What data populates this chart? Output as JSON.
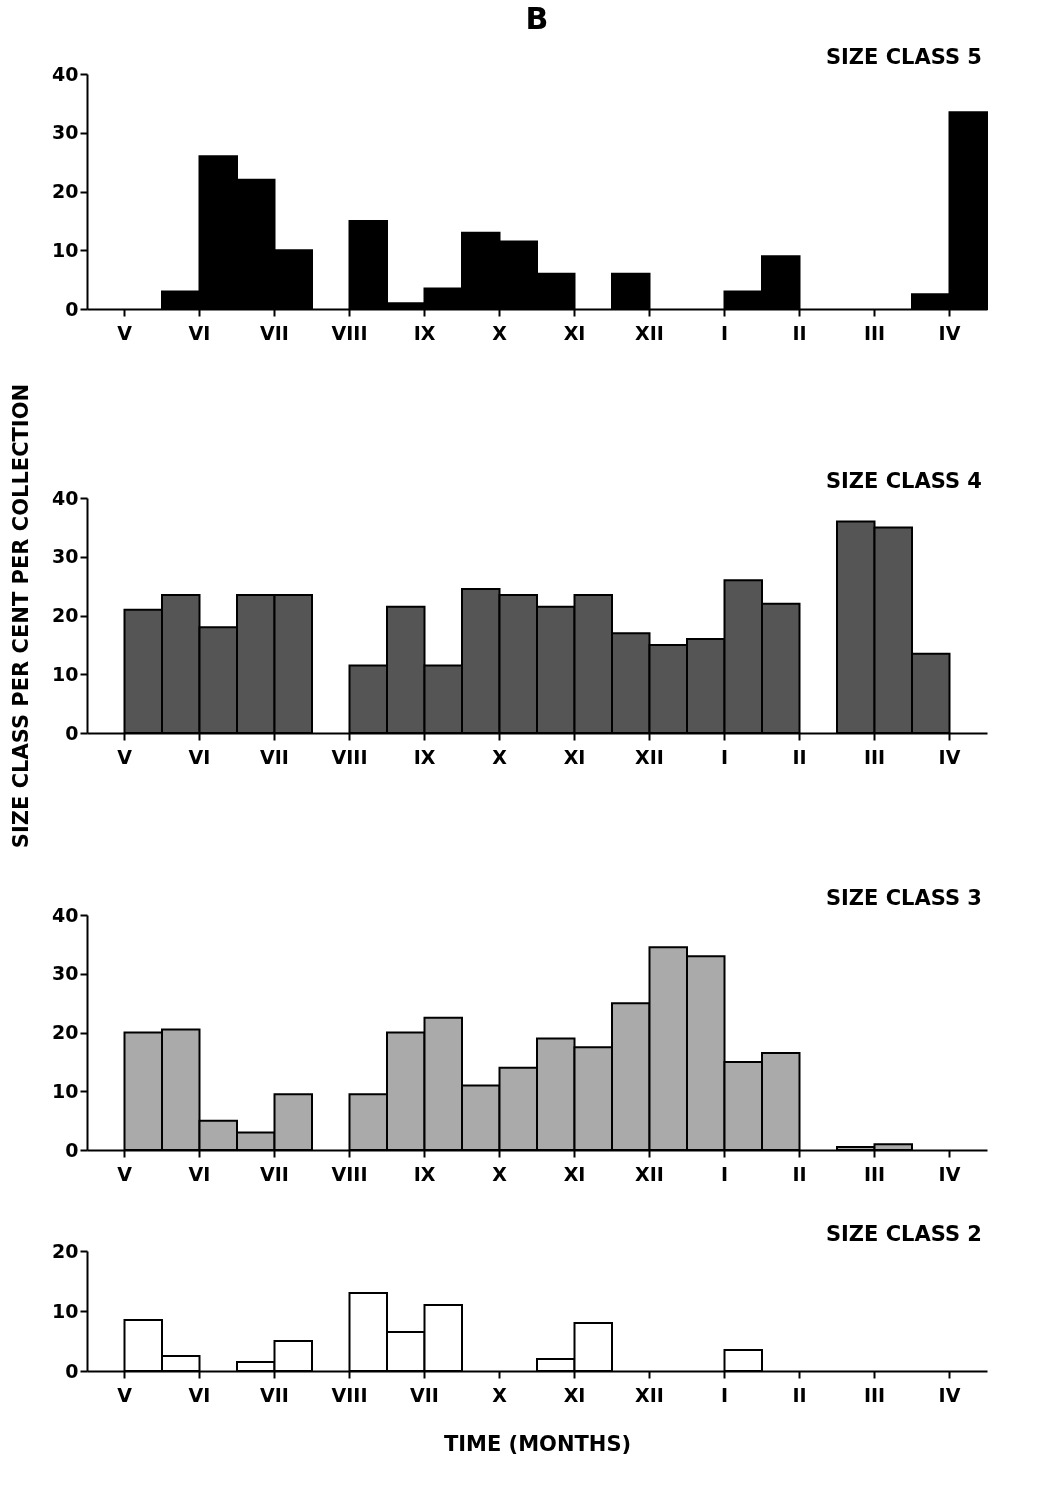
{
  "chart_data": [
    {
      "type": "bar",
      "title": "SIZE CLASS 5",
      "annotations": [
        "B"
      ],
      "categories": [
        "V",
        "VI",
        "VII",
        "VIII",
        "IX",
        "X",
        "XI",
        "XII",
        "I",
        "II",
        "III",
        "IV"
      ],
      "series": [
        {
          "color": "#000000",
          "values": [
            0,
            3,
            22,
            0,
            1,
            13,
            6,
            6,
            0,
            9,
            0,
            2.5
          ]
        },
        {
          "color": "#000000",
          "values": [
            0,
            26,
            10,
            15,
            3.5,
            11.5,
            0,
            0,
            3,
            0,
            0,
            33.5
          ]
        }
      ],
      "ylim": [
        0,
        40
      ],
      "yticks": [
        0,
        10,
        20,
        30,
        40
      ]
    },
    {
      "type": "bar",
      "title": "SIZE CLASS 4",
      "ylabel": "SIZE CLASS PER CENT PER COLLECTION",
      "categories": [
        "V",
        "VI",
        "VII",
        "VIII",
        "IX",
        "X",
        "XI",
        "XII",
        "I",
        "II",
        "III",
        "IV"
      ],
      "series": [
        {
          "color": "#555555",
          "values": [
            0,
            23.5,
            23.5,
            0,
            21.5,
            24.5,
            21.5,
            17,
            16,
            22,
            36,
            13.5
          ]
        },
        {
          "color": "#555555",
          "values": [
            21,
            18,
            23.5,
            11.5,
            11.5,
            23.5,
            23.5,
            15,
            26,
            0,
            35,
            0
          ]
        }
      ],
      "ylim": [
        0,
        40
      ],
      "yticks": [
        0,
        10,
        20,
        30,
        40
      ]
    },
    {
      "type": "bar",
      "title": "SIZE CLASS 3",
      "categories": [
        "V",
        "VI",
        "VII",
        "VIII",
        "IX",
        "X",
        "XI",
        "XII",
        "I",
        "II",
        "III",
        "IV"
      ],
      "series": [
        {
          "color": "#aaaaaa",
          "values": [
            0,
            20.5,
            3,
            0,
            20,
            11,
            19,
            25,
            33,
            16.5,
            0.5,
            0
          ]
        },
        {
          "color": "#aaaaaa",
          "values": [
            20,
            5,
            9.5,
            9.5,
            22.5,
            14,
            17.5,
            34.5,
            15,
            0,
            1,
            0
          ]
        }
      ],
      "ylim": [
        0,
        40
      ],
      "yticks": [
        0,
        10,
        20,
        30,
        40
      ]
    },
    {
      "type": "bar",
      "title": "SIZE CLASS 2",
      "xlabel": "TIME (MONTHS)",
      "categories": [
        "V",
        "VI",
        "VII",
        "VIII",
        "VII",
        "X",
        "XI",
        "XII",
        "I",
        "II",
        "III",
        "IV"
      ],
      "series": [
        {
          "color": "#ffffff",
          "values": [
            0,
            2.5,
            1.5,
            0,
            6.5,
            0,
            2,
            0,
            0,
            0,
            0,
            0
          ]
        },
        {
          "color": "#ffffff",
          "values": [
            8.5,
            0,
            5,
            13,
            11,
            0,
            8,
            0,
            3.5,
            0,
            0,
            0
          ]
        }
      ],
      "ylim": [
        0,
        20
      ],
      "yticks": [
        0,
        10,
        20
      ]
    }
  ]
}
